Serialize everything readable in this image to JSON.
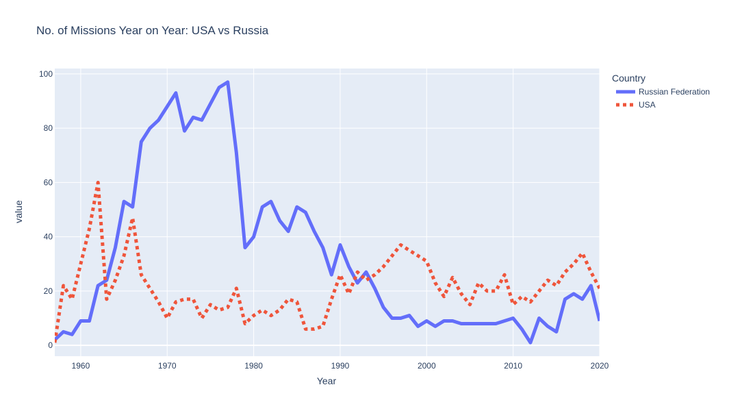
{
  "chart_data": {
    "type": "line",
    "title": "No. of Missions Year on Year: USA vs Russia",
    "xlabel": "Year",
    "ylabel": "value",
    "xlim": [
      1957,
      2020
    ],
    "ylim": [
      -4,
      102
    ],
    "xticks": [
      1960,
      1970,
      1980,
      1990,
      2000,
      2010,
      2020
    ],
    "yticks": [
      0,
      20,
      40,
      60,
      80,
      100
    ],
    "grid": true,
    "legend": {
      "title": "Country",
      "placement": "top-right"
    },
    "x": [
      1957,
      1958,
      1959,
      1960,
      1961,
      1962,
      1963,
      1964,
      1965,
      1966,
      1967,
      1968,
      1969,
      1970,
      1971,
      1972,
      1973,
      1974,
      1975,
      1976,
      1977,
      1978,
      1979,
      1980,
      1981,
      1982,
      1983,
      1984,
      1985,
      1986,
      1987,
      1988,
      1989,
      1990,
      1991,
      1992,
      1993,
      1994,
      1995,
      1996,
      1997,
      1998,
      1999,
      2000,
      2001,
      2002,
      2003,
      2004,
      2005,
      2006,
      2007,
      2008,
      2009,
      2010,
      2011,
      2012,
      2013,
      2014,
      2015,
      2016,
      2017,
      2018,
      2019,
      2020
    ],
    "series": [
      {
        "name": "Russian Federation",
        "color": "#636efa",
        "dash": "solid",
        "values": [
          2,
          5,
          4,
          9,
          9,
          22,
          24,
          36,
          53,
          51,
          75,
          80,
          83,
          88,
          93,
          79,
          84,
          83,
          89,
          95,
          97,
          71,
          36,
          40,
          51,
          53,
          46,
          42,
          51,
          49,
          42,
          36,
          26,
          37,
          29,
          23,
          27,
          21,
          14,
          10,
          10,
          11,
          7,
          9,
          7,
          9,
          9,
          8,
          8,
          8,
          8,
          8,
          9,
          10,
          6,
          1,
          10,
          7,
          5,
          17,
          19,
          17,
          22,
          9
        ]
      },
      {
        "name": "USA",
        "color": "#ef553b",
        "dash": "dot",
        "values": [
          1,
          22,
          17,
          30,
          43,
          60,
          17,
          24,
          33,
          47,
          26,
          21,
          16,
          10,
          16,
          17,
          17,
          10,
          15,
          13,
          14,
          21,
          8,
          11,
          13,
          11,
          13,
          17,
          16,
          6,
          6,
          7,
          17,
          26,
          19,
          27,
          24,
          26,
          29,
          33,
          37,
          35,
          33,
          31,
          23,
          18,
          25,
          19,
          15,
          23,
          20,
          20,
          26,
          15,
          18,
          16,
          20,
          24,
          22,
          27,
          30,
          34,
          27,
          21
        ]
      }
    ]
  }
}
